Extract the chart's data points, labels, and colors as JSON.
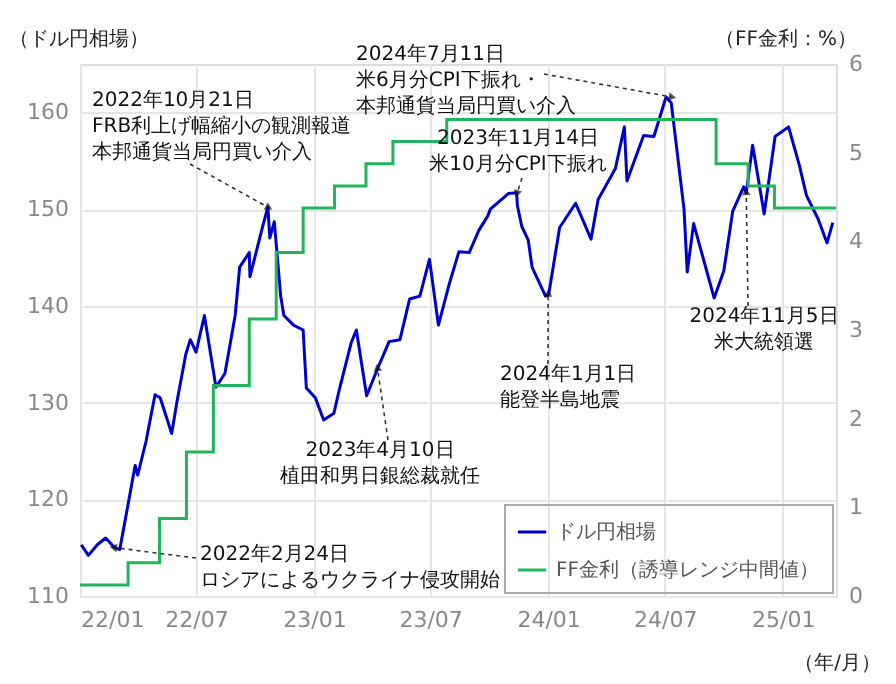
{
  "chart_data": {
    "type": "line",
    "ylabel": "（ドル円相場）",
    "y2label": "（FF金利：%）",
    "xlabel": "（年/月）",
    "xlim": [
      "2022-01-01",
      "2025-03-25"
    ],
    "xticks": [
      {
        "value": "2022-01-01",
        "label": "22/01"
      },
      {
        "value": "2022-07-01",
        "label": "22/07"
      },
      {
        "value": "2023-01-01",
        "label": "23/01"
      },
      {
        "value": "2023-07-01",
        "label": "23/07"
      },
      {
        "value": "2024-01-01",
        "label": "24/01"
      },
      {
        "value": "2024-07-01",
        "label": "24/07"
      },
      {
        "value": "2025-01-01",
        "label": "25/01"
      }
    ],
    "ylim": [
      110,
      165
    ],
    "yticks": [
      110,
      120,
      130,
      140,
      150,
      160
    ],
    "y2lim": [
      0,
      6
    ],
    "y2ticks": [
      0,
      1,
      2,
      3,
      4,
      5,
      6
    ],
    "grid": true,
    "legend": "bottom right",
    "series": [
      {
        "name": "ドル円相場",
        "color": "#0000cc",
        "x": [
          "2022-01-03",
          "2022-01-14",
          "2022-01-28",
          "2022-02-10",
          "2022-02-24",
          "2022-03-04",
          "2022-03-11",
          "2022-03-28",
          "2022-04-01",
          "2022-04-14",
          "2022-04-28",
          "2022-05-06",
          "2022-05-24",
          "2022-06-01",
          "2022-06-15",
          "2022-06-22",
          "2022-07-01",
          "2022-07-14",
          "2022-08-01",
          "2022-08-15",
          "2022-08-31",
          "2022-09-07",
          "2022-09-22",
          "2022-09-23",
          "2022-10-14",
          "2022-10-21",
          "2022-10-24",
          "2022-10-31",
          "2022-11-10",
          "2022-11-15",
          "2022-11-30",
          "2022-12-15",
          "2022-12-20",
          "2023-01-03",
          "2023-01-16",
          "2023-02-01",
          "2023-02-10",
          "2023-02-28",
          "2023-03-08",
          "2023-03-24",
          "2023-04-10",
          "2023-04-28",
          "2023-05-15",
          "2023-05-30",
          "2023-06-15",
          "2023-06-30",
          "2023-07-14",
          "2023-07-31",
          "2023-08-15",
          "2023-08-31",
          "2023-09-15",
          "2023-09-29",
          "2023-10-03",
          "2023-10-31",
          "2023-11-13",
          "2023-11-14",
          "2023-11-21",
          "2023-12-01",
          "2023-12-07",
          "2023-12-28",
          "2024-01-02",
          "2024-01-19",
          "2024-02-13",
          "2024-03-08",
          "2024-03-19",
          "2024-04-15",
          "2024-04-29",
          "2024-05-03",
          "2024-05-29",
          "2024-06-14",
          "2024-07-03",
          "2024-07-11",
          "2024-07-31",
          "2024-08-05",
          "2024-08-15",
          "2024-09-16",
          "2024-10-01",
          "2024-10-15",
          "2024-11-01",
          "2024-11-05",
          "2024-11-15",
          "2024-12-03",
          "2024-12-20",
          "2025-01-10",
          "2025-01-27",
          "2025-02-07",
          "2025-02-25",
          "2025-03-11",
          "2025-03-20"
        ],
        "values": [
          115.3,
          114.2,
          115.3,
          116.0,
          115.0,
          114.8,
          117.3,
          123.5,
          122.5,
          126.0,
          130.8,
          130.5,
          126.8,
          130.0,
          135.0,
          136.5,
          135.2,
          139.0,
          131.6,
          133.0,
          139.0,
          144.0,
          145.5,
          143.0,
          148.5,
          150.2,
          147.0,
          148.7,
          141.0,
          139.0,
          138.0,
          137.5,
          131.5,
          130.5,
          128.2,
          128.9,
          131.5,
          136.2,
          137.5,
          130.7,
          133.5,
          136.3,
          136.5,
          140.7,
          141.0,
          144.8,
          138.0,
          142.3,
          145.6,
          145.5,
          147.8,
          149.3,
          150.0,
          151.6,
          151.7,
          150.4,
          148.2,
          146.8,
          144.0,
          141.0,
          141.2,
          148.1,
          150.6,
          146.9,
          151.0,
          154.2,
          158.5,
          152.9,
          157.6,
          157.5,
          161.6,
          161.0,
          150.0,
          143.5,
          148.5,
          140.8,
          143.6,
          149.8,
          152.3,
          151.7,
          156.6,
          149.5,
          157.5,
          158.5,
          154.5,
          151.4,
          149.0,
          146.5,
          148.6
        ]
      },
      {
        "name": "FF金利（誘導レンジ中間値）",
        "color": "#22b45a",
        "type": "step",
        "axis": "y2",
        "x": [
          "2022-01-01",
          "2022-03-17",
          "2022-05-05",
          "2022-06-16",
          "2022-07-28",
          "2022-09-22",
          "2022-11-03",
          "2022-12-15",
          "2023-02-02",
          "2023-03-23",
          "2023-05-04",
          "2023-07-27",
          "2024-09-19",
          "2024-11-08",
          "2024-12-19",
          "2025-03-25"
        ],
        "values": [
          0.125,
          0.375,
          0.875,
          1.625,
          2.375,
          3.125,
          3.875,
          4.375,
          4.625,
          4.875,
          5.125,
          5.375,
          4.875,
          4.625,
          4.375,
          4.375
        ]
      }
    ],
    "annotations": [
      {
        "text": "2022年2月24日ロシアによるウクライナ侵攻開始",
        "x": "2022-02-24",
        "y": 115.0
      },
      {
        "text": "2022年10月21日FRB利上げ幅縮小の観測報道本邦通貨当局円買い介入",
        "x": "2022-10-21",
        "y": 150.2
      },
      {
        "text": "2023年4月10日植田和男日銀総裁就任",
        "x": "2023-04-10",
        "y": 133.5
      },
      {
        "text": "2023年11月14日米10月分CPI下振れ",
        "x": "2023-11-14",
        "y": 151.7
      },
      {
        "text": "2024年7月11日米6月分CPI下振れ・本邦通貨当局円買い介入",
        "x": "2024-07-11",
        "y": 161.6
      },
      {
        "text": "2024年1月1日能登半島地震",
        "x": "2024-01-01",
        "y": 141.2
      },
      {
        "text": "2024年11月5日米大統領選",
        "x": "2024-11-05",
        "y": 151.7
      }
    ]
  }
}
